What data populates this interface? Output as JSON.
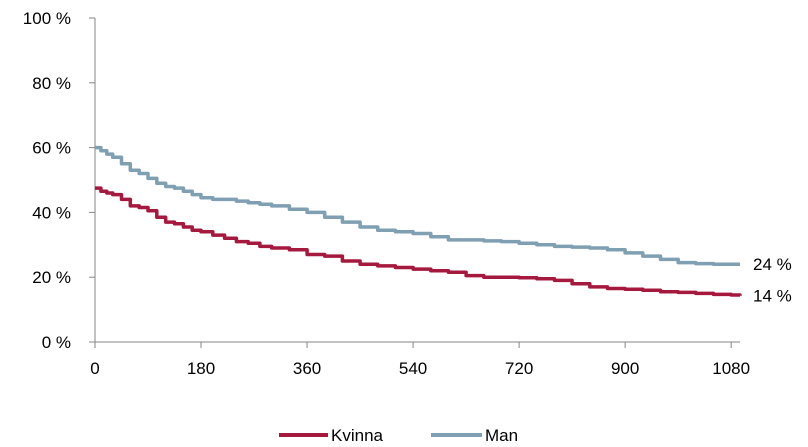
{
  "chart_data": {
    "type": "line",
    "xlim": [
      0,
      1095
    ],
    "ylim": [
      0,
      100
    ],
    "x_ticks": [
      "0",
      "180",
      "360",
      "540",
      "720",
      "900",
      "1080"
    ],
    "y_ticks": [
      "0 %",
      "20 %",
      "40 %",
      "60 %",
      "80 %",
      "100 %"
    ],
    "grid": false,
    "legend_position": "bottom",
    "series": [
      {
        "name": "Kvinna",
        "color": "#A6193F",
        "end_label": "14 %",
        "x": [
          0,
          10,
          20,
          30,
          45,
          60,
          75,
          90,
          105,
          120,
          135,
          150,
          165,
          180,
          200,
          220,
          240,
          260,
          280,
          300,
          330,
          360,
          390,
          420,
          450,
          480,
          510,
          540,
          570,
          600,
          630,
          660,
          690,
          720,
          750,
          780,
          810,
          840,
          870,
          900,
          930,
          960,
          990,
          1020,
          1050,
          1080,
          1095
        ],
        "y": [
          47.5,
          46.5,
          46,
          45.5,
          44,
          42,
          41.5,
          40.5,
          38.5,
          37,
          36.5,
          35.5,
          34.5,
          34,
          33,
          32,
          31,
          30.5,
          29.5,
          29,
          28.5,
          27,
          26.5,
          25,
          24,
          23.5,
          23,
          22.5,
          22,
          21.5,
          20.5,
          20,
          20,
          19.8,
          19.5,
          19,
          18,
          17,
          16.5,
          16.3,
          16,
          15.5,
          15.3,
          15,
          14.7,
          14.5,
          14.3
        ]
      },
      {
        "name": "Man",
        "color": "#7F9FB2",
        "end_label": "24 %",
        "x": [
          0,
          10,
          20,
          30,
          45,
          60,
          75,
          90,
          105,
          120,
          135,
          150,
          165,
          180,
          200,
          220,
          240,
          260,
          280,
          300,
          330,
          360,
          390,
          420,
          450,
          480,
          510,
          540,
          570,
          600,
          630,
          660,
          690,
          720,
          750,
          780,
          810,
          840,
          870,
          900,
          930,
          960,
          990,
          1020,
          1050,
          1080,
          1095
        ],
        "y": [
          60,
          59,
          58,
          57,
          55,
          53,
          52,
          50.5,
          49,
          48,
          47.5,
          46.5,
          45.5,
          44.5,
          44,
          44,
          43.5,
          43,
          42.5,
          42,
          41,
          40,
          38.5,
          37,
          35.5,
          34.5,
          34,
          33.5,
          32.5,
          31.5,
          31.5,
          31.2,
          31,
          30.5,
          30,
          29.5,
          29.3,
          29,
          28.5,
          27.5,
          26.5,
          25.5,
          24.5,
          24.2,
          24,
          24,
          24
        ]
      }
    ]
  }
}
